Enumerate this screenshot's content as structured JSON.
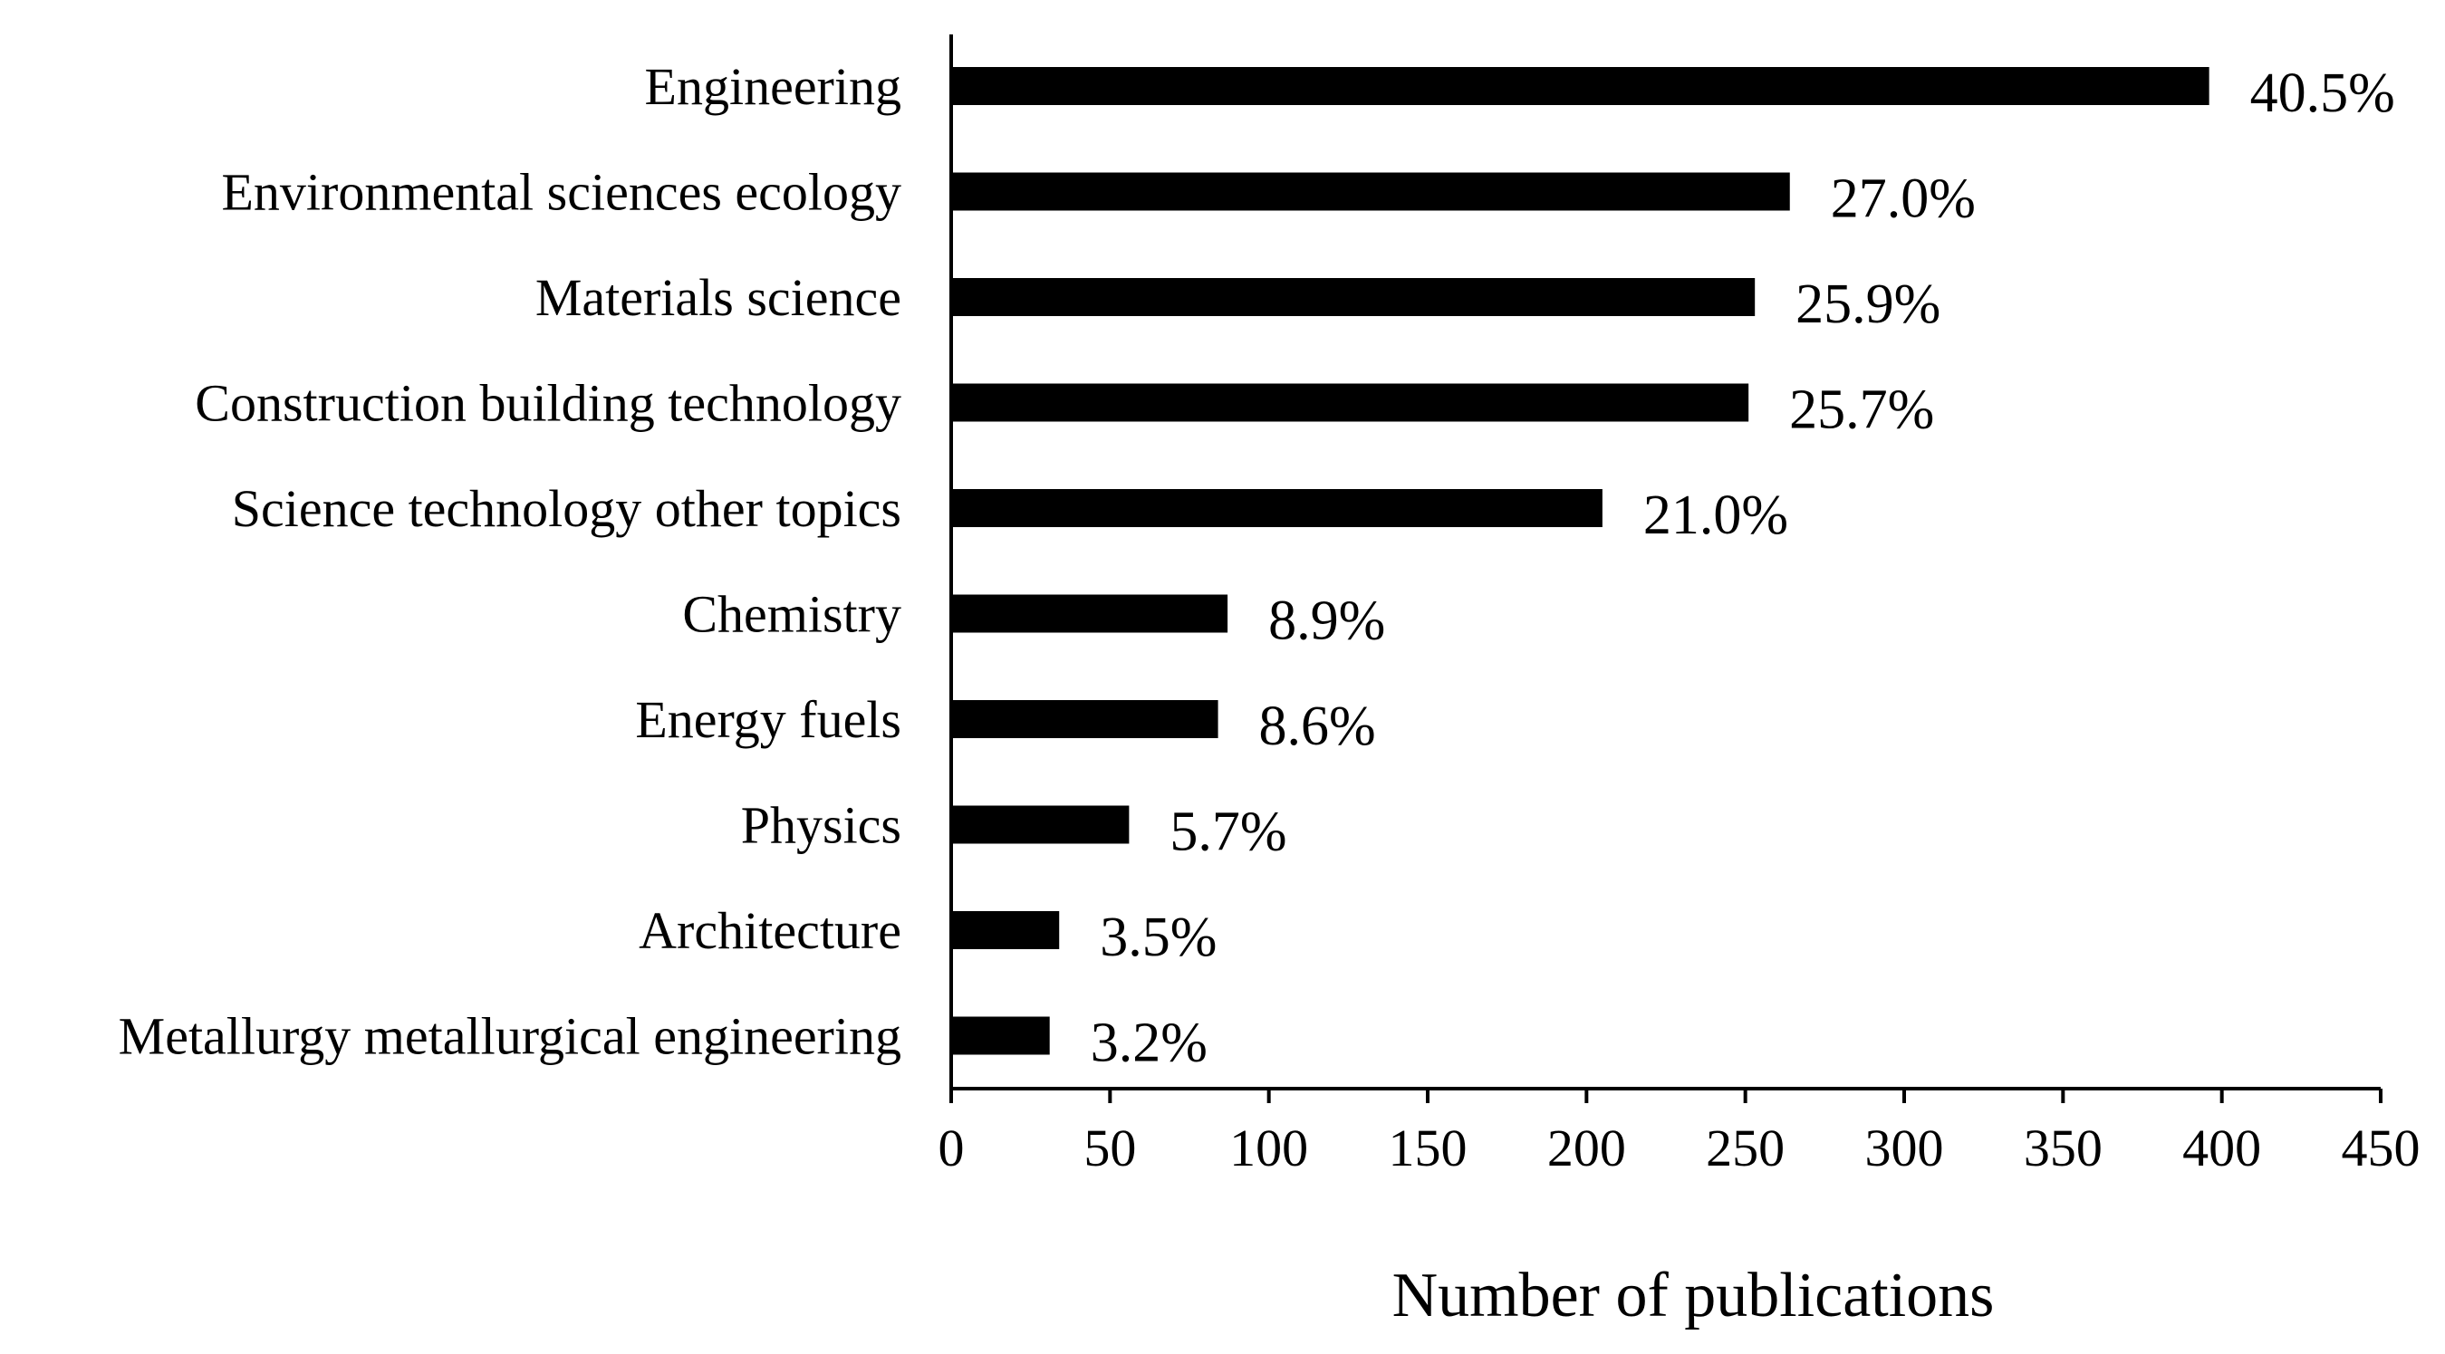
{
  "chart_data": {
    "type": "bar",
    "orientation": "horizontal",
    "title": "",
    "xlabel": "Number of publications",
    "ylabel": "",
    "xlim": [
      0,
      450
    ],
    "xticks": [
      0,
      50,
      100,
      150,
      200,
      250,
      300,
      350,
      400,
      450
    ],
    "grid": false,
    "legend": null,
    "bar_color": "#000000",
    "categories": [
      "Engineering",
      "Environmental sciences ecology",
      "Materials science",
      "Construction building technology",
      "Science technology other topics",
      "Chemistry",
      "Energy fuels",
      "Physics",
      "Architecture",
      "Metallurgy metallurgical engineering"
    ],
    "values": [
      396,
      264,
      253,
      251,
      205,
      87,
      84,
      56,
      34,
      31
    ],
    "data_labels": [
      "40.5%",
      "27.0%",
      "25.9%",
      "25.7%",
      "21.0%",
      "8.9%",
      "8.6%",
      "5.7%",
      "3.5%",
      "3.2%"
    ]
  }
}
